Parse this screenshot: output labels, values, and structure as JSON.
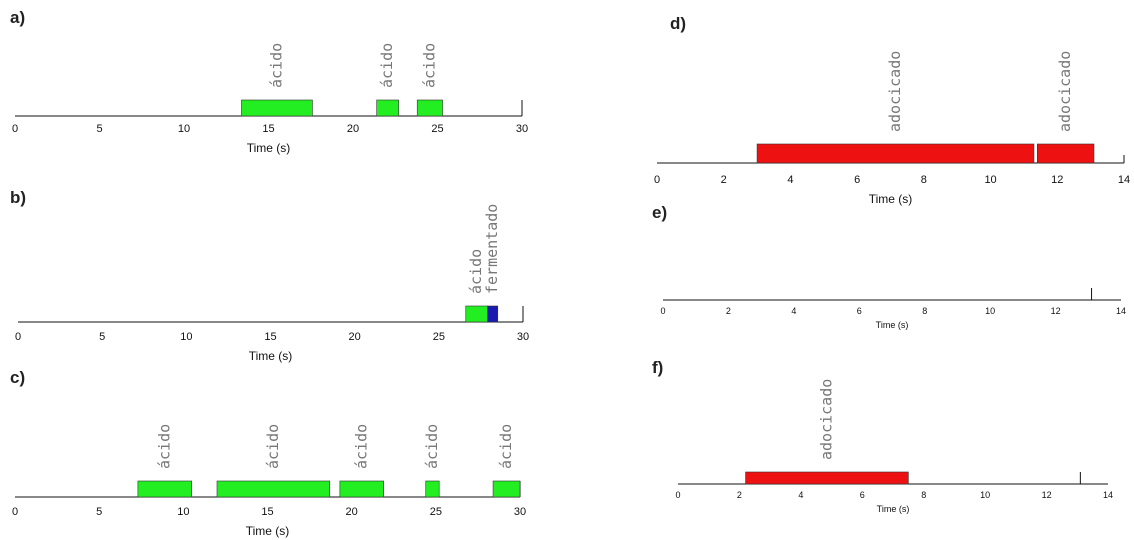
{
  "chart_data": [
    {
      "type": "timeline",
      "panel_label": "a)",
      "xlabel": "Time (s)",
      "xlim": [
        0,
        30
      ],
      "xticks": [
        0,
        5,
        10,
        15,
        20,
        25,
        30
      ],
      "segments": [
        {
          "label": "ácido",
          "start": 13.4,
          "end": 17.6,
          "color": "#22ee22"
        },
        {
          "label": "ácido",
          "start": 21.4,
          "end": 22.7,
          "color": "#22ee22"
        },
        {
          "label": "ácido",
          "start": 23.8,
          "end": 25.3,
          "color": "#22ee22"
        }
      ]
    },
    {
      "type": "timeline",
      "panel_label": "b)",
      "xlabel": "Time (s)",
      "xlim": [
        0,
        30
      ],
      "xticks": [
        0,
        5,
        10,
        15,
        20,
        25,
        30
      ],
      "segments": [
        {
          "label": "ácido",
          "start": 26.6,
          "end": 27.9,
          "color": "#22ee22"
        },
        {
          "label": "fermentado",
          "start": 27.9,
          "end": 28.5,
          "color": "#1a1ab0"
        }
      ]
    },
    {
      "type": "timeline",
      "panel_label": "c)",
      "xlabel": "Time (s)",
      "xlim": [
        0,
        30
      ],
      "xticks": [
        0,
        5,
        10,
        15,
        20,
        25,
        30
      ],
      "segments": [
        {
          "label": "ácido",
          "start": 7.3,
          "end": 10.5,
          "color": "#22ee22"
        },
        {
          "label": "ácido",
          "start": 12.0,
          "end": 18.7,
          "color": "#22ee22"
        },
        {
          "label": "ácido",
          "start": 19.3,
          "end": 21.9,
          "color": "#22ee22"
        },
        {
          "label": "ácido",
          "start": 24.4,
          "end": 25.2,
          "color": "#22ee22"
        },
        {
          "label": "ácido",
          "start": 28.4,
          "end": 30.0,
          "color": "#22ee22"
        }
      ]
    },
    {
      "type": "timeline",
      "panel_label": "d)",
      "xlabel": "Time (s)",
      "xlim": [
        0,
        14
      ],
      "xticks": [
        0,
        2,
        4,
        6,
        8,
        10,
        12,
        14
      ],
      "segments": [
        {
          "label": "adocicado",
          "start": 3.0,
          "end": 11.3,
          "color": "#ee1111"
        },
        {
          "label": "adocicado",
          "start": 11.4,
          "end": 13.1,
          "color": "#ee1111"
        }
      ]
    },
    {
      "type": "timeline",
      "panel_label": "e)",
      "xlabel": "Time (s)",
      "xlim": [
        0,
        14
      ],
      "xticks": [
        0,
        2,
        4,
        6,
        8,
        10,
        12,
        14
      ],
      "end_marker": 13.1,
      "segments": []
    },
    {
      "type": "timeline",
      "panel_label": "f)",
      "xlabel": "Time (s)",
      "xlim": [
        0,
        14
      ],
      "xticks": [
        0,
        2,
        4,
        6,
        8,
        10,
        12,
        14
      ],
      "end_marker": 13.1,
      "segments": [
        {
          "label": "adocicado",
          "start": 2.2,
          "end": 7.5,
          "color": "#ee1111"
        }
      ]
    }
  ]
}
